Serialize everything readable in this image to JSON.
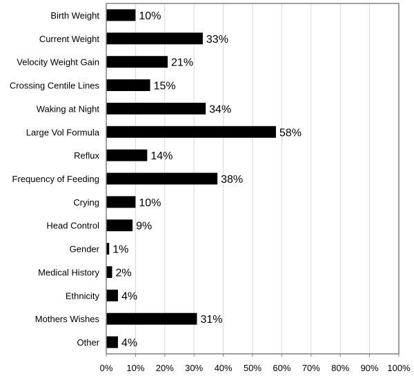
{
  "chart_data": {
    "type": "bar",
    "orientation": "horizontal",
    "title": "",
    "xlabel": "",
    "ylabel": "",
    "categories": [
      "Birth Weight",
      "Current Weight",
      "Velocity Weight Gain",
      "Crossing Centile Lines",
      "Waking at Night",
      "Large Vol Formula",
      "Reflux",
      "Frequency of Feeding",
      "Crying",
      "Head Control",
      "Gender",
      "Medical History",
      "Ethnicity",
      "Mothers Wishes",
      "Other"
    ],
    "values": [
      10,
      33,
      21,
      15,
      34,
      58,
      14,
      38,
      10,
      9,
      1,
      2,
      4,
      31,
      4
    ],
    "value_labels": [
      "10%",
      "33%",
      "21%",
      "15%",
      "34%",
      "58%",
      "14%",
      "38%",
      "10%",
      "9%",
      "1%",
      "2%",
      "4%",
      "31%",
      "4%"
    ],
    "xlim": [
      0,
      100
    ],
    "x_ticks": [
      0,
      10,
      20,
      30,
      40,
      50,
      60,
      70,
      80,
      90,
      100
    ],
    "x_tick_labels": [
      "0%",
      "10%",
      "20%",
      "30%",
      "40%",
      "50%",
      "60%",
      "70%",
      "80%",
      "90%",
      "100%"
    ],
    "grid": true,
    "legend": "none",
    "bar_color": "#000000",
    "grid_color": "#d9d9d9",
    "frame_color": "#808080"
  }
}
